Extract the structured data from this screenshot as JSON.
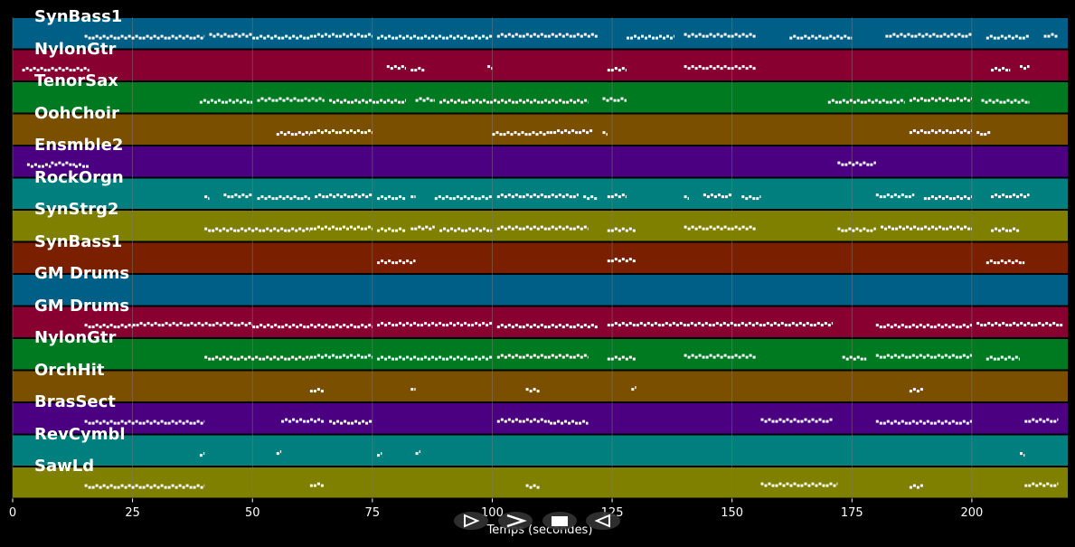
{
  "colors": {
    "background": "#000000",
    "note": "#ffffff",
    "grid": "#7a7a7a",
    "transport_button": "#333333"
  },
  "transport": [
    {
      "name": "play-icon",
      "glyph": "play-outline"
    },
    {
      "name": "fast-forward-icon",
      "glyph": "chevron-right"
    },
    {
      "name": "stop-icon",
      "glyph": "square"
    },
    {
      "name": "rewind-icon",
      "glyph": "play-outline-left"
    }
  ],
  "chart_data": {
    "type": "heatmap",
    "subtype": "piano-roll",
    "xlabel": "Temps (secondes)",
    "xlim": [
      0,
      220
    ],
    "xticks": [
      0,
      25,
      50,
      75,
      100,
      125,
      150,
      175,
      200
    ],
    "grid": true,
    "tracks": [
      {
        "name": "SynBass1",
        "color": "#005f87",
        "segments": [
          [
            15,
            40
          ],
          [
            41,
            50
          ],
          [
            50,
            62
          ],
          [
            62,
            75
          ],
          [
            76,
            100
          ],
          [
            101,
            122
          ],
          [
            128,
            138
          ],
          [
            140,
            155
          ],
          [
            162,
            175
          ],
          [
            182,
            200
          ],
          [
            203,
            212
          ],
          [
            215,
            218
          ]
        ]
      },
      {
        "name": "NylonGtr",
        "color": "#870030",
        "segments": [
          [
            2,
            16
          ],
          [
            78,
            82
          ],
          [
            83,
            86
          ],
          [
            99,
            100
          ],
          [
            124,
            128
          ],
          [
            140,
            155
          ],
          [
            204,
            208
          ],
          [
            210,
            212
          ]
        ]
      },
      {
        "name": "TenorSax",
        "color": "#007a20",
        "segments": [
          [
            39,
            50
          ],
          [
            51,
            65
          ],
          [
            66,
            82
          ],
          [
            84,
            88
          ],
          [
            89,
            120
          ],
          [
            123,
            128
          ],
          [
            170,
            186
          ],
          [
            187,
            200
          ],
          [
            202,
            212
          ]
        ]
      },
      {
        "name": "OohChoir",
        "color": "#7a5000",
        "segments": [
          [
            55,
            62
          ],
          [
            62,
            75
          ],
          [
            100,
            112
          ],
          [
            112,
            121
          ],
          [
            123,
            124
          ],
          [
            187,
            200
          ],
          [
            201,
            204
          ]
        ]
      },
      {
        "name": "Ensmble2",
        "color": "#4b0082",
        "segments": [
          [
            3,
            8
          ],
          [
            8,
            13
          ],
          [
            13,
            16
          ],
          [
            172,
            180
          ]
        ]
      },
      {
        "name": "RockOrgn",
        "color": "#007f7f",
        "segments": [
          [
            40,
            41
          ],
          [
            44,
            50
          ],
          [
            51,
            62
          ],
          [
            63,
            75
          ],
          [
            76,
            82
          ],
          [
            83,
            84
          ],
          [
            88,
            100
          ],
          [
            101,
            118
          ],
          [
            119,
            122
          ],
          [
            124,
            128
          ],
          [
            140,
            141
          ],
          [
            144,
            150
          ],
          [
            152,
            156
          ],
          [
            180,
            188
          ],
          [
            190,
            200
          ],
          [
            204,
            212
          ]
        ]
      },
      {
        "name": "SynStrg2",
        "color": "#7f7f00",
        "segments": [
          [
            40,
            62
          ],
          [
            62,
            75
          ],
          [
            76,
            82
          ],
          [
            83,
            88
          ],
          [
            89,
            100
          ],
          [
            101,
            120
          ],
          [
            124,
            130
          ],
          [
            140,
            155
          ],
          [
            172,
            180
          ],
          [
            181,
            200
          ],
          [
            204,
            210
          ]
        ]
      },
      {
        "name": "SynBass1",
        "color": "#7a2000",
        "segments": [
          [
            76,
            84
          ],
          [
            124,
            130
          ],
          [
            203,
            211
          ]
        ]
      },
      {
        "name": "GM Drums",
        "color": "#005f87",
        "segments": []
      },
      {
        "name": "GM Drums",
        "color": "#870030",
        "segments": [
          [
            15,
            25
          ],
          [
            25,
            50
          ],
          [
            50,
            75
          ],
          [
            76,
            100
          ],
          [
            101,
            122
          ],
          [
            124,
            171
          ],
          [
            180,
            200
          ],
          [
            201,
            219
          ]
        ]
      },
      {
        "name": "NylonGtr",
        "color": "#007a20",
        "segments": [
          [
            40,
            62
          ],
          [
            62,
            75
          ],
          [
            76,
            100
          ],
          [
            101,
            120
          ],
          [
            124,
            130
          ],
          [
            140,
            155
          ],
          [
            173,
            178
          ],
          [
            180,
            200
          ],
          [
            203,
            210
          ]
        ]
      },
      {
        "name": "OrchHit",
        "color": "#7a5000",
        "segments": [
          [
            62,
            65
          ],
          [
            83,
            84
          ],
          [
            107,
            110
          ],
          [
            129,
            130
          ],
          [
            187,
            190
          ]
        ]
      },
      {
        "name": "BrasSect",
        "color": "#4b0082",
        "segments": [
          [
            15,
            40
          ],
          [
            56,
            65
          ],
          [
            66,
            75
          ],
          [
            101,
            112
          ],
          [
            112,
            120
          ],
          [
            156,
            171
          ],
          [
            180,
            200
          ],
          [
            211,
            218
          ]
        ]
      },
      {
        "name": "RevCymbl",
        "color": "#007f7f",
        "segments": [
          [
            39,
            40
          ],
          [
            55,
            56
          ],
          [
            76,
            77
          ],
          [
            84,
            85
          ],
          [
            210,
            211
          ]
        ]
      },
      {
        "name": "SawLd",
        "color": "#7f7f00",
        "segments": [
          [
            15,
            40
          ],
          [
            62,
            65
          ],
          [
            107,
            110
          ],
          [
            156,
            172
          ],
          [
            187,
            190
          ],
          [
            211,
            218
          ]
        ]
      }
    ]
  }
}
